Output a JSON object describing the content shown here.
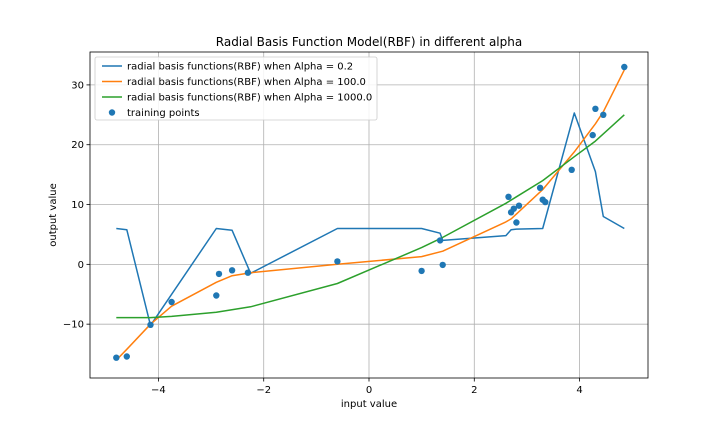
{
  "chart_data": {
    "type": "line",
    "title": "Radial Basis Function Model(RBF) in different alpha",
    "xlabel": "input value",
    "ylabel": "output value",
    "xlim": [
      -5.3,
      5.3
    ],
    "ylim": [
      -19,
      35.5
    ],
    "xticks": [
      -4,
      -2,
      0,
      2,
      4
    ],
    "yticks": [
      -10,
      0,
      10,
      20,
      30
    ],
    "grid": true,
    "legend_position": "top-left",
    "series": [
      {
        "name": "radial basis functions(RBF) when Alpha = 0.2",
        "color": "#1f77b4",
        "x": [
          -4.8,
          -4.6,
          -4.15,
          -2.9,
          -2.6,
          -2.25,
          -0.6,
          1.0,
          1.35,
          1.4,
          2.6,
          2.7,
          2.8,
          3.3,
          3.9,
          4.3,
          4.35,
          4.45,
          4.85
        ],
        "y": [
          6.0,
          5.8,
          -10.2,
          6.0,
          5.7,
          -1.5,
          6.0,
          6.0,
          5.2,
          4.0,
          4.8,
          5.8,
          5.9,
          6.0,
          25.3,
          15.5,
          13.0,
          8.0,
          6.0
        ]
      },
      {
        "name": "radial basis functions(RBF) when Alpha = 100.0",
        "color": "#ff7f0e",
        "x": [
          -4.8,
          -4.6,
          -4.15,
          -3.75,
          -2.9,
          -2.6,
          -2.25,
          -0.6,
          1.0,
          1.4,
          2.6,
          2.7,
          2.8,
          3.3,
          3.9,
          4.3,
          4.45,
          4.85
        ],
        "y": [
          -16.0,
          -14.2,
          -10.0,
          -7.0,
          -3.0,
          -1.9,
          -1.4,
          0.0,
          1.3,
          2.2,
          7.1,
          7.6,
          8.4,
          12.5,
          18.8,
          23.5,
          25.5,
          32.5
        ]
      },
      {
        "name": "radial basis functions(RBF) when Alpha = 1000.0",
        "color": "#2ca02c",
        "x": [
          -4.8,
          -4.15,
          -3.75,
          -2.9,
          -2.25,
          -0.6,
          1.0,
          1.4,
          2.6,
          2.8,
          3.3,
          3.9,
          4.3,
          4.85
        ],
        "y": [
          -8.9,
          -8.9,
          -8.7,
          -8.0,
          -7.1,
          -3.2,
          2.8,
          4.5,
          10.2,
          11.3,
          14.0,
          18.0,
          20.6,
          25.0
        ]
      }
    ],
    "scatter": {
      "name": "training points",
      "color": "#1f77b4",
      "points": [
        [
          -4.8,
          -15.6
        ],
        [
          -4.6,
          -15.4
        ],
        [
          -4.15,
          -10.1
        ],
        [
          -3.75,
          -6.3
        ],
        [
          -2.9,
          -5.2
        ],
        [
          -2.85,
          -1.6
        ],
        [
          -2.6,
          -1.0
        ],
        [
          -2.3,
          -1.4
        ],
        [
          -0.6,
          0.5
        ],
        [
          1.0,
          -1.1
        ],
        [
          1.35,
          4.0
        ],
        [
          1.4,
          -0.1
        ],
        [
          2.65,
          11.3
        ],
        [
          2.7,
          8.7
        ],
        [
          2.75,
          9.3
        ],
        [
          2.8,
          7.0
        ],
        [
          2.85,
          9.8
        ],
        [
          3.25,
          12.8
        ],
        [
          3.3,
          10.8
        ],
        [
          3.35,
          10.4
        ],
        [
          3.85,
          15.8
        ],
        [
          4.25,
          21.6
        ],
        [
          4.3,
          26.0
        ],
        [
          4.45,
          25.0
        ],
        [
          4.85,
          33.0
        ]
      ]
    }
  }
}
